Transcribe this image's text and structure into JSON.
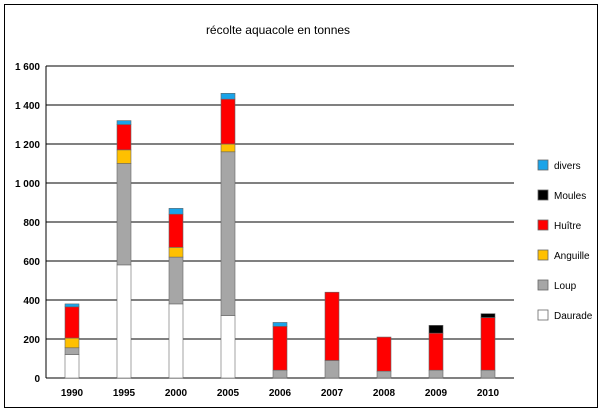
{
  "chart_data": {
    "type": "bar",
    "stacked": true,
    "title": "récolte aquacole en tonnes",
    "xlabel": "",
    "ylabel": "",
    "ylim": [
      0,
      1600
    ],
    "y_ticks": [
      "0",
      "200",
      "400",
      "600",
      "800",
      "1 000",
      "1 200",
      "1 400",
      "1 600"
    ],
    "y_tick_values": [
      0,
      200,
      400,
      600,
      800,
      1000,
      1200,
      1400,
      1600
    ],
    "grid": "horizontal",
    "legend_position": "right",
    "categories": [
      "1990",
      "1995",
      "2000",
      "2005",
      "2006",
      "2007",
      "2008",
      "2009",
      "2010"
    ],
    "series": [
      {
        "name": "Daurade",
        "color": "#ffffff",
        "values": [
          120,
          580,
          380,
          320,
          0,
          0,
          0,
          0,
          0
        ]
      },
      {
        "name": "Loup",
        "color": "#a6a6a6",
        "values": [
          35,
          520,
          240,
          840,
          40,
          90,
          35,
          40,
          40
        ]
      },
      {
        "name": "Anguille",
        "color": "#ffc000",
        "values": [
          50,
          70,
          50,
          40,
          0,
          0,
          0,
          0,
          0
        ]
      },
      {
        "name": "Huître",
        "color": "#ff0000",
        "values": [
          160,
          130,
          170,
          230,
          225,
          350,
          175,
          190,
          270
        ]
      },
      {
        "name": "Moules",
        "color": "#000000",
        "values": [
          0,
          0,
          0,
          0,
          0,
          0,
          0,
          40,
          20
        ]
      },
      {
        "name": "divers",
        "color": "#1aa3e8",
        "values": [
          15,
          20,
          30,
          30,
          20,
          0,
          0,
          0,
          0
        ]
      }
    ]
  }
}
